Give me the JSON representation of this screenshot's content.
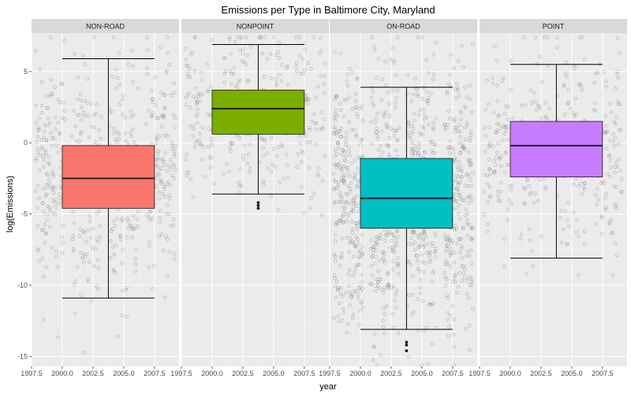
{
  "chart_data": {
    "type": "boxplot",
    "title": "Emissions per Type in Baltimore City, Maryland",
    "xlabel": "year",
    "ylabel": "log(Emissions)",
    "xlim": [
      1997.5,
      2009.5
    ],
    "ylim": [
      -15.7,
      7.7
    ],
    "x_ticks": [
      1997.5,
      2000.0,
      2002.5,
      2005.0,
      2007.5
    ],
    "x_tick_labels": [
      "1997.5",
      "2000.0",
      "2002.5",
      "2005.0",
      "2007.5"
    ],
    "y_ticks": [
      5,
      0,
      -5,
      -10,
      -15
    ],
    "y_tick_labels": [
      "5",
      "0",
      "-5",
      "-10",
      "-15"
    ],
    "panels": [
      {
        "type": "NON-ROAD",
        "fill": "#F8766D",
        "box_x": [
          2000.0,
          2007.5
        ],
        "whisker_low": -10.9,
        "q1": -4.6,
        "median": -2.5,
        "q3": -0.2,
        "whisker_high": 5.9,
        "outliers": []
      },
      {
        "type": "NONPOINT",
        "fill": "#7CAE00",
        "box_x": [
          2000.0,
          2007.5
        ],
        "whisker_low": -3.6,
        "q1": 0.6,
        "median": 2.4,
        "q3": 3.7,
        "whisker_high": 6.9,
        "outliers": [
          -4.2,
          -4.4,
          -4.6
        ]
      },
      {
        "type": "ON-ROAD",
        "fill": "#00BFC4",
        "box_x": [
          2000.0,
          2007.5
        ],
        "whisker_low": -13.1,
        "q1": -6.0,
        "median": -3.9,
        "q3": -1.1,
        "whisker_high": 3.9,
        "outliers": [
          -14.0,
          -14.2,
          -14.6
        ]
      },
      {
        "type": "POINT",
        "fill": "#C77CFF",
        "box_x": [
          2000.0,
          2007.5
        ],
        "whisker_low": -8.1,
        "q1": -2.4,
        "median": -0.2,
        "q3": 1.5,
        "whisker_high": 5.5,
        "outliers": []
      }
    ]
  }
}
